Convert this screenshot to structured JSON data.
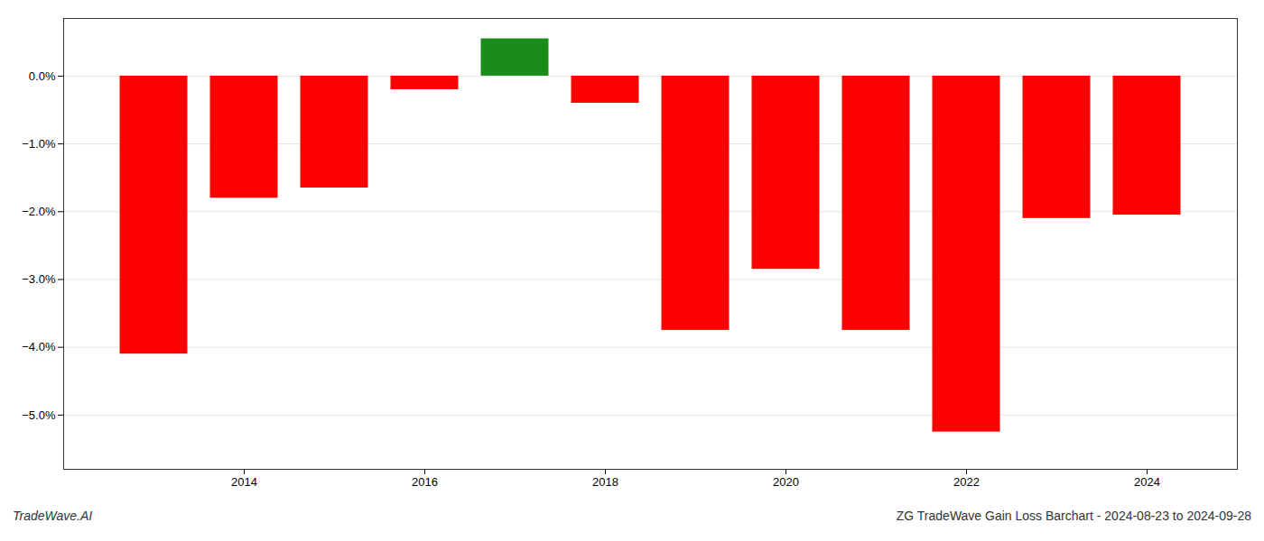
{
  "chart_data": {
    "type": "bar",
    "x": [
      2013,
      2014,
      2015,
      2016,
      2017,
      2018,
      2019,
      2020,
      2021,
      2022,
      2023,
      2024
    ],
    "values": [
      -4.1,
      -1.8,
      -1.65,
      -0.2,
      0.55,
      -0.4,
      -3.75,
      -2.85,
      -3.75,
      -5.25,
      -2.1,
      -2.05
    ],
    "colors": [
      "#ff0000",
      "#ff0000",
      "#ff0000",
      "#ff0000",
      "#1a8c1a",
      "#ff0000",
      "#ff0000",
      "#ff0000",
      "#ff0000",
      "#ff0000",
      "#ff0000",
      "#ff0000"
    ],
    "xlim": [
      2012,
      2025
    ],
    "xticks": [
      2014,
      2016,
      2018,
      2020,
      2022,
      2024
    ],
    "ylim": [
      -5.8,
      0.85
    ],
    "yticks": [
      {
        "value": 0.0,
        "label": "0.0%"
      },
      {
        "value": -1.0,
        "label": "−1.0%"
      },
      {
        "value": -2.0,
        "label": "−2.0%"
      },
      {
        "value": -3.0,
        "label": "−3.0%"
      },
      {
        "value": -4.0,
        "label": "−4.0%"
      },
      {
        "value": -5.0,
        "label": "−5.0%"
      }
    ],
    "grid": true,
    "annotations": [
      "TradeWave.AI",
      "ZG TradeWave Gain Loss Barchart - 2024-08-23 to 2024-09-28"
    ]
  }
}
